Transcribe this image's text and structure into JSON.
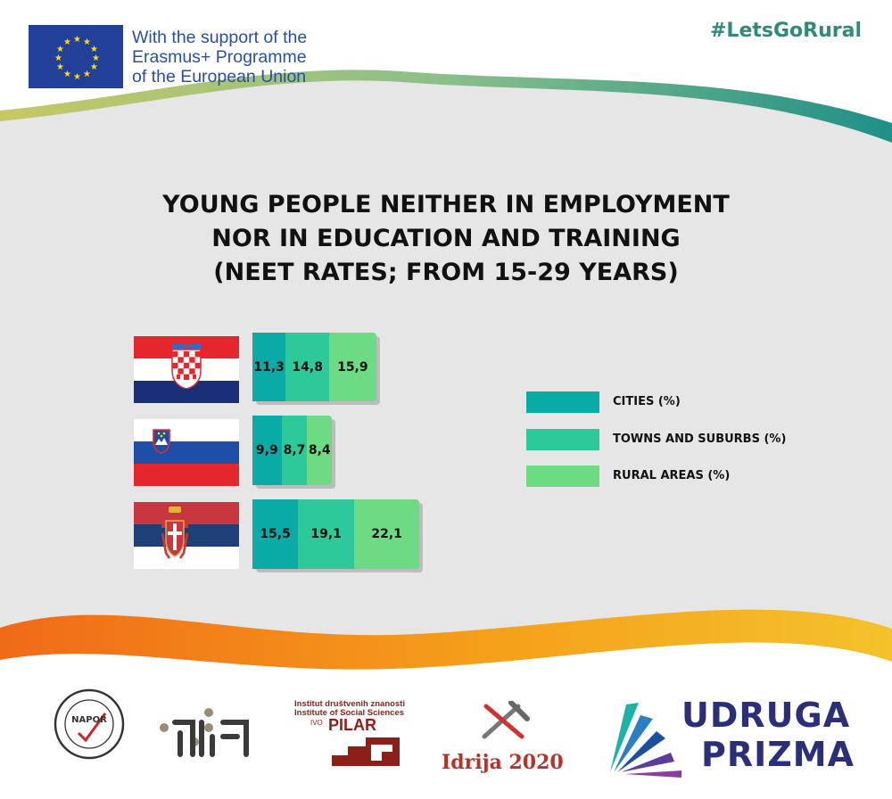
{
  "header": {
    "eu_support_lines": [
      "With the support of the",
      "Erasmus+ Programme",
      "of the European Union"
    ],
    "hashtag": "#LetsGoRural"
  },
  "title_lines": [
    "YOUNG PEOPLE NEITHER IN EMPLOYMENT",
    "NOR IN EDUCATION AND TRAINING",
    "(NEET RATES; FROM 15-29 YEARS)"
  ],
  "colors": {
    "cities": "#0aaba6",
    "towns": "#2ec99a",
    "rural": "#6ddb83",
    "background": "#e7e6e6",
    "title": "#111111"
  },
  "chart_data": {
    "type": "bar",
    "orientation": "horizontal",
    "stacked": true,
    "categories": [
      "Croatia",
      "Slovenia",
      "Serbia"
    ],
    "category_display": "country flag icons",
    "series": [
      {
        "name": "CITIES (%)",
        "values": [
          11.3,
          9.9,
          15.5
        ],
        "labels": [
          "11,3",
          "9,9",
          "15,5"
        ]
      },
      {
        "name": "TOWNS AND SUBURBS (%)",
        "values": [
          14.8,
          8.7,
          19.1
        ],
        "labels": [
          "14,8",
          "8,7",
          "19,1"
        ]
      },
      {
        "name": "RURAL AREAS (%)",
        "values": [
          15.9,
          8.4,
          22.1
        ],
        "labels": [
          "15,9",
          "8,4",
          "22,1"
        ]
      }
    ],
    "legend_position": "right",
    "grid": false,
    "axes_visible": false
  },
  "footer_logos": [
    {
      "name": "napor",
      "text": "NAPOR"
    },
    {
      "name": "hupo",
      "text": ""
    },
    {
      "name": "institut-pilar",
      "lines": [
        "Institut društvenih znanosti",
        "Institute of Social Sciences",
        "IVO",
        "PILAR"
      ]
    },
    {
      "name": "idrija",
      "text": "Idrija 2020"
    },
    {
      "name": "udruga-prizma",
      "lines": [
        "UDRUGA",
        "PRIZMA"
      ]
    }
  ],
  "icons": [
    "eu-flag-icon",
    "croatia-flag-icon",
    "slovenia-flag-icon",
    "serbia-flag-icon",
    "hammer-pick-icon"
  ]
}
